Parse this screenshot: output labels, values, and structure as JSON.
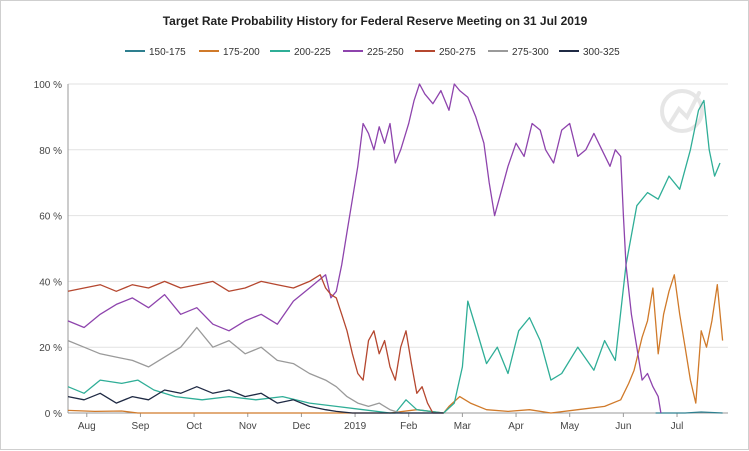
{
  "chart_data": {
    "type": "line",
    "title": "Target Rate Probability History for Federal Reserve Meeting on 31 Jul 2019",
    "xlabel": "",
    "ylabel": "",
    "x_ticks": [
      "Aug",
      "Sep",
      "Oct",
      "Nov",
      "Dec",
      "2019",
      "Feb",
      "Mar",
      "Apr",
      "May",
      "Jun",
      "Jul"
    ],
    "y_ticks": [
      "0 %",
      "20 %",
      "40 %",
      "60 %",
      "80 %",
      "100 %"
    ],
    "ylim": [
      0,
      100
    ],
    "xlim": [
      0,
      12.3
    ],
    "grid": true,
    "legend_position": "top",
    "colors": {
      "150-175": "#2e7f8f",
      "175-200": "#d07a2a",
      "200-225": "#2fae97",
      "225-250": "#8e44ad",
      "250-275": "#b5472f",
      "275-300": "#9a9a9a",
      "300-325": "#1f2a44"
    },
    "series": [
      {
        "name": "150-175",
        "points": [
          [
            10.95,
            0
          ],
          [
            11.5,
            0
          ],
          [
            11.8,
            0.3
          ],
          [
            12.2,
            0
          ]
        ]
      },
      {
        "name": "175-200",
        "points": [
          [
            0,
            0.8
          ],
          [
            0.5,
            0.5
          ],
          [
            1,
            0.6
          ],
          [
            1.3,
            0
          ],
          [
            5,
            0
          ],
          [
            6,
            0
          ],
          [
            6.5,
            1
          ],
          [
            7,
            0
          ],
          [
            7.1,
            2
          ],
          [
            7.3,
            5
          ],
          [
            7.5,
            3
          ],
          [
            7.8,
            1
          ],
          [
            8.2,
            0.5
          ],
          [
            8.6,
            1
          ],
          [
            9,
            0
          ],
          [
            9.5,
            1
          ],
          [
            10,
            2
          ],
          [
            10.3,
            4
          ],
          [
            10.45,
            9
          ],
          [
            10.55,
            13
          ],
          [
            10.7,
            23
          ],
          [
            10.8,
            28
          ],
          [
            10.9,
            38
          ],
          [
            11,
            18
          ],
          [
            11.1,
            30
          ],
          [
            11.2,
            37
          ],
          [
            11.3,
            42
          ],
          [
            11.4,
            30
          ],
          [
            11.5,
            20
          ],
          [
            11.6,
            10
          ],
          [
            11.7,
            3
          ],
          [
            11.8,
            25
          ],
          [
            11.9,
            20
          ],
          [
            12.0,
            28
          ],
          [
            12.1,
            39
          ],
          [
            12.2,
            22
          ]
        ]
      },
      {
        "name": "200-225",
        "points": [
          [
            0,
            8
          ],
          [
            0.3,
            6
          ],
          [
            0.6,
            10
          ],
          [
            1,
            9
          ],
          [
            1.3,
            10
          ],
          [
            1.6,
            7
          ],
          [
            2,
            5
          ],
          [
            2.5,
            4
          ],
          [
            3,
            5
          ],
          [
            3.5,
            4
          ],
          [
            4,
            5
          ],
          [
            4.5,
            3
          ],
          [
            5,
            2
          ],
          [
            5.5,
            1
          ],
          [
            6,
            0
          ],
          [
            6.1,
            0
          ],
          [
            6.2,
            2
          ],
          [
            6.3,
            4
          ],
          [
            6.5,
            1
          ],
          [
            7,
            0
          ],
          [
            7.2,
            3
          ],
          [
            7.35,
            14
          ],
          [
            7.45,
            34
          ],
          [
            7.6,
            26
          ],
          [
            7.8,
            15
          ],
          [
            8,
            20
          ],
          [
            8.2,
            12
          ],
          [
            8.4,
            25
          ],
          [
            8.6,
            29
          ],
          [
            8.8,
            22
          ],
          [
            9,
            10
          ],
          [
            9.2,
            12
          ],
          [
            9.5,
            20
          ],
          [
            9.8,
            13
          ],
          [
            10,
            22
          ],
          [
            10.2,
            16
          ],
          [
            10.4,
            45
          ],
          [
            10.6,
            63
          ],
          [
            10.8,
            67
          ],
          [
            11,
            65
          ],
          [
            11.2,
            72
          ],
          [
            11.4,
            68
          ],
          [
            11.6,
            80
          ],
          [
            11.75,
            92
          ],
          [
            11.85,
            95
          ],
          [
            11.95,
            80
          ],
          [
            12.05,
            72
          ],
          [
            12.15,
            76
          ]
        ]
      },
      {
        "name": "225-250",
        "points": [
          [
            0,
            28
          ],
          [
            0.3,
            26
          ],
          [
            0.6,
            30
          ],
          [
            0.9,
            33
          ],
          [
            1.2,
            35
          ],
          [
            1.5,
            32
          ],
          [
            1.8,
            36
          ],
          [
            2.1,
            30
          ],
          [
            2.4,
            32
          ],
          [
            2.7,
            27
          ],
          [
            3,
            25
          ],
          [
            3.3,
            28
          ],
          [
            3.6,
            30
          ],
          [
            3.9,
            27
          ],
          [
            4.2,
            34
          ],
          [
            4.5,
            38
          ],
          [
            4.8,
            42
          ],
          [
            4.9,
            35
          ],
          [
            5,
            37
          ],
          [
            5.1,
            45
          ],
          [
            5.2,
            55
          ],
          [
            5.3,
            65
          ],
          [
            5.4,
            75
          ],
          [
            5.5,
            88
          ],
          [
            5.6,
            85
          ],
          [
            5.7,
            80
          ],
          [
            5.8,
            87
          ],
          [
            5.9,
            82
          ],
          [
            6,
            88
          ],
          [
            6.1,
            76
          ],
          [
            6.2,
            80
          ],
          [
            6.35,
            88
          ],
          [
            6.45,
            95
          ],
          [
            6.55,
            100
          ],
          [
            6.65,
            97
          ],
          [
            6.8,
            94
          ],
          [
            6.95,
            98
          ],
          [
            7.1,
            92
          ],
          [
            7.2,
            100
          ],
          [
            7.3,
            98
          ],
          [
            7.45,
            96
          ],
          [
            7.6,
            90
          ],
          [
            7.75,
            82
          ],
          [
            7.85,
            70
          ],
          [
            7.95,
            60
          ],
          [
            8.05,
            66
          ],
          [
            8.2,
            75
          ],
          [
            8.35,
            82
          ],
          [
            8.5,
            78
          ],
          [
            8.65,
            88
          ],
          [
            8.8,
            86
          ],
          [
            8.9,
            80
          ],
          [
            9.05,
            76
          ],
          [
            9.2,
            86
          ],
          [
            9.35,
            88
          ],
          [
            9.5,
            78
          ],
          [
            9.65,
            80
          ],
          [
            9.8,
            85
          ],
          [
            9.95,
            80
          ],
          [
            10.1,
            75
          ],
          [
            10.2,
            80
          ],
          [
            10.3,
            78
          ],
          [
            10.35,
            60
          ],
          [
            10.4,
            45
          ],
          [
            10.5,
            30
          ],
          [
            10.6,
            20
          ],
          [
            10.7,
            10
          ],
          [
            10.8,
            12
          ],
          [
            10.9,
            8
          ],
          [
            11,
            5
          ],
          [
            11.05,
            0
          ]
        ]
      },
      {
        "name": "250-275",
        "points": [
          [
            0,
            37
          ],
          [
            0.3,
            38
          ],
          [
            0.6,
            39
          ],
          [
            0.9,
            37
          ],
          [
            1.2,
            39
          ],
          [
            1.5,
            38
          ],
          [
            1.8,
            40
          ],
          [
            2.1,
            38
          ],
          [
            2.4,
            39
          ],
          [
            2.7,
            40
          ],
          [
            3,
            37
          ],
          [
            3.3,
            38
          ],
          [
            3.6,
            40
          ],
          [
            3.9,
            39
          ],
          [
            4.2,
            38
          ],
          [
            4.5,
            40
          ],
          [
            4.7,
            42
          ],
          [
            4.8,
            38
          ],
          [
            4.9,
            36
          ],
          [
            5,
            35
          ],
          [
            5.1,
            30
          ],
          [
            5.2,
            25
          ],
          [
            5.3,
            18
          ],
          [
            5.4,
            12
          ],
          [
            5.5,
            10
          ],
          [
            5.6,
            22
          ],
          [
            5.7,
            25
          ],
          [
            5.8,
            18
          ],
          [
            5.9,
            22
          ],
          [
            6,
            14
          ],
          [
            6.1,
            10
          ],
          [
            6.2,
            20
          ],
          [
            6.3,
            25
          ],
          [
            6.4,
            15
          ],
          [
            6.5,
            6
          ],
          [
            6.6,
            8
          ],
          [
            6.7,
            3
          ],
          [
            6.8,
            0
          ],
          [
            7,
            0
          ]
        ]
      },
      {
        "name": "275-300",
        "points": [
          [
            0,
            22
          ],
          [
            0.3,
            20
          ],
          [
            0.6,
            18
          ],
          [
            0.9,
            17
          ],
          [
            1.2,
            16
          ],
          [
            1.5,
            14
          ],
          [
            1.8,
            17
          ],
          [
            2.1,
            20
          ],
          [
            2.4,
            26
          ],
          [
            2.7,
            20
          ],
          [
            3,
            22
          ],
          [
            3.3,
            18
          ],
          [
            3.6,
            20
          ],
          [
            3.9,
            16
          ],
          [
            4.2,
            15
          ],
          [
            4.5,
            12
          ],
          [
            4.8,
            10
          ],
          [
            5,
            8
          ],
          [
            5.2,
            5
          ],
          [
            5.4,
            3
          ],
          [
            5.6,
            2
          ],
          [
            5.8,
            3
          ],
          [
            6,
            1
          ],
          [
            6.2,
            0
          ],
          [
            7,
            0
          ]
        ]
      },
      {
        "name": "300-325",
        "points": [
          [
            0,
            5
          ],
          [
            0.3,
            4
          ],
          [
            0.6,
            6
          ],
          [
            0.9,
            3
          ],
          [
            1.2,
            5
          ],
          [
            1.5,
            4
          ],
          [
            1.8,
            7
          ],
          [
            2.1,
            6
          ],
          [
            2.4,
            8
          ],
          [
            2.7,
            6
          ],
          [
            3,
            7
          ],
          [
            3.3,
            5
          ],
          [
            3.6,
            6
          ],
          [
            3.9,
            3
          ],
          [
            4.2,
            4
          ],
          [
            4.5,
            2
          ],
          [
            4.8,
            1
          ],
          [
            5,
            0.5
          ],
          [
            5.3,
            0
          ],
          [
            7,
            0
          ]
        ]
      }
    ]
  }
}
